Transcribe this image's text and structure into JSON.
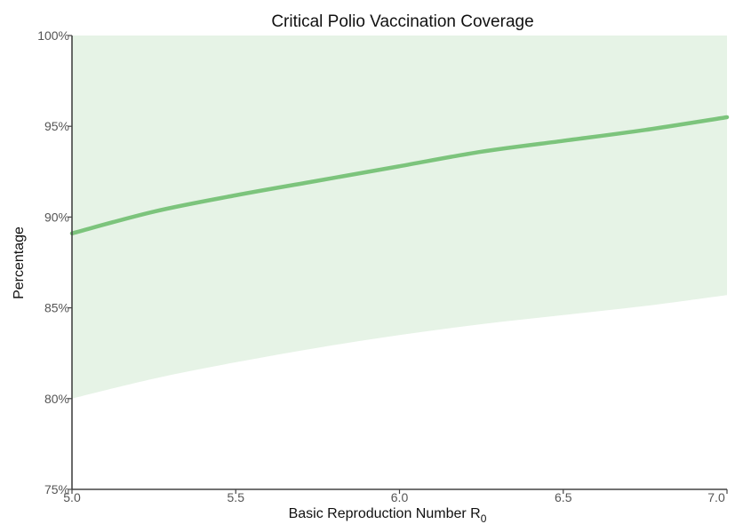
{
  "chart_data": {
    "type": "area",
    "title": "Critical Polio Vaccination Coverage",
    "xlabel": "Basic Reproduction Number R",
    "xlabel_subscript": "0",
    "ylabel": "Percentage",
    "xlim": [
      5.0,
      7.0
    ],
    "ylim": [
      75,
      100
    ],
    "x_ticks": [
      "5.0",
      "5.5",
      "6.0",
      "6.5",
      "7.0"
    ],
    "y_ticks": [
      "75%",
      "80%",
      "85%",
      "90%",
      "95%",
      "100%"
    ],
    "grid": false,
    "legend": "none",
    "series": [
      {
        "type": "line",
        "x": [
          5.0,
          5.25,
          5.5,
          5.75,
          6.0,
          6.25,
          6.5,
          6.75,
          7.0
        ],
        "y": [
          89.1,
          90.3,
          91.2,
          92.0,
          92.8,
          93.6,
          94.2,
          94.8,
          95.5
        ]
      },
      {
        "type": "band",
        "x": [
          5.0,
          5.25,
          5.5,
          5.75,
          6.0,
          6.25,
          6.5,
          6.75,
          7.0
        ],
        "lower": [
          80.0,
          81.1,
          82.0,
          82.8,
          83.5,
          84.1,
          84.6,
          85.1,
          85.7
        ],
        "upper": [
          100,
          100,
          100,
          100,
          100,
          100,
          100,
          100,
          100
        ]
      }
    ],
    "colors": {
      "line": "#7cc47c",
      "band": "#e6f3e6",
      "axis": "#444444"
    }
  }
}
